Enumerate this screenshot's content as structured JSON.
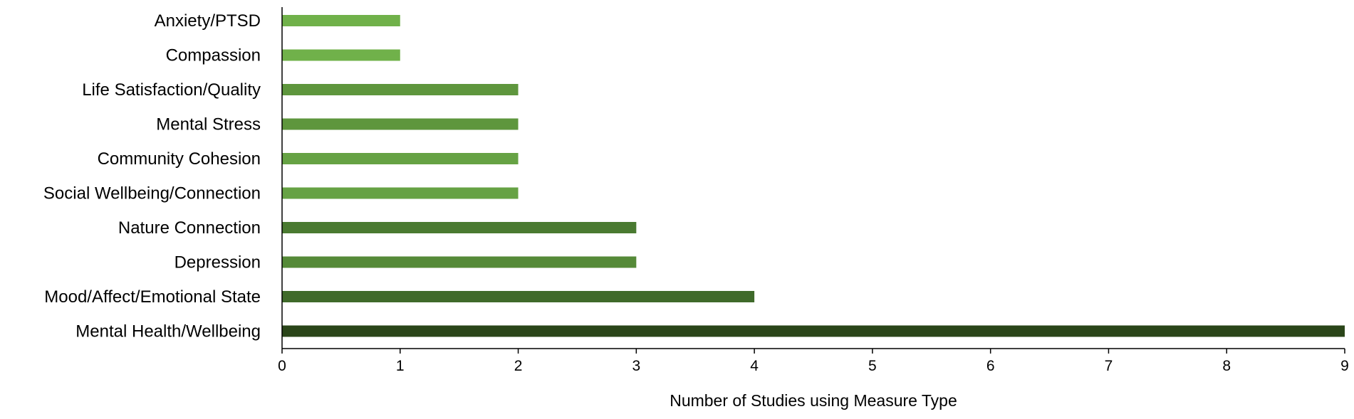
{
  "chart_data": {
    "type": "bar",
    "orientation": "horizontal",
    "title": "",
    "xlabel": "Number of Studies using Measure Type",
    "ylabel": "",
    "xlim": [
      0,
      9
    ],
    "xticks": [
      0,
      1,
      2,
      3,
      4,
      5,
      6,
      7,
      8,
      9
    ],
    "grid": false,
    "legend": "none",
    "categories": [
      "Anxiety/PTSD",
      "Compassion",
      "Life Satisfaction/Quality",
      "Mental Stress",
      "Community Cohesion",
      "Social Wellbeing/Connection",
      "Nature Connection",
      "Depression",
      "Mood/Affect/Emotional State",
      "Mental Health/Wellbeing"
    ],
    "values": [
      1,
      1,
      2,
      2,
      2,
      2,
      3,
      3,
      4,
      9
    ],
    "colors": [
      "#70b14a",
      "#70b14a",
      "#5e963d",
      "#5e963d",
      "#66a244",
      "#66a244",
      "#4a7a31",
      "#558a38",
      "#3f6a2a",
      "#2a4519"
    ]
  }
}
